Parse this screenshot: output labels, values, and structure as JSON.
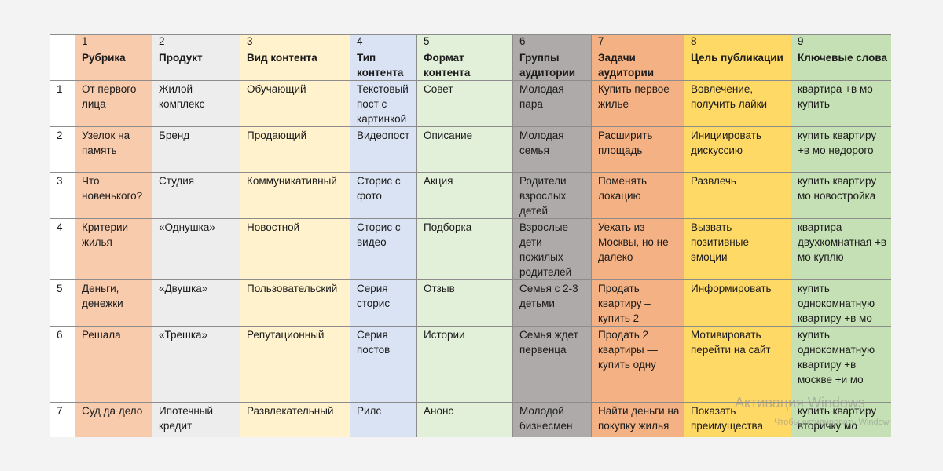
{
  "columns": [
    "1",
    "2",
    "3",
    "4",
    "5",
    "6",
    "7",
    "8",
    "9"
  ],
  "headers": [
    "Рубрика",
    "Продукт",
    "Вид контента",
    "Тип контента",
    "Формат контента",
    "Группы аудитории",
    "Задачи аудитории",
    "Цель публикации",
    "Ключевые слова"
  ],
  "rows": [
    {
      "num": "1",
      "cells": [
        "От первого лица",
        "Жилой комплекс",
        "Обучающий",
        "Текстовый пост с картинкой",
        "Совет",
        "Молодая пара",
        "Купить первое жилье",
        "Вовлечение, получить лайки",
        "квартира +в мо купить"
      ]
    },
    {
      "num": "2",
      "cells": [
        "Узелок на память",
        "Бренд",
        "Продающий",
        "Видеопост",
        "Описание",
        "Молодая семья",
        "Расширить площадь",
        "Инициировать дискуссию",
        "купить квартиру +в мо недорого"
      ]
    },
    {
      "num": "3",
      "cells": [
        "Что новенького?",
        "Студия",
        "Коммуникативный",
        "Сторис с фото",
        "Акция",
        "Родители взрослых детей",
        "Поменять локацию",
        "Развлечь",
        "купить квартиру мо новостройка"
      ]
    },
    {
      "num": "4",
      "cells": [
        "Критерии жилья",
        "«Однушка»",
        "Новостной",
        "Сторис с видео",
        "Подборка",
        "Взрослые дети пожилых родителей",
        "Уехать из Москвы, но не далеко",
        "Вызвать позитивные эмоции",
        "квартира двухкомнатная +в мо куплю"
      ]
    },
    {
      "num": "5",
      "cells": [
        "Деньги, денежки",
        "«Двушка»",
        "Пользовательский",
        "Серия сторис",
        "Отзыв",
        "Семья с 2-3 детьми",
        "Продать квартиру – купить 2",
        "Информировать",
        "купить однокомнатную квартиру +в мо"
      ]
    },
    {
      "num": "6",
      "cells": [
        "Решала",
        "«Трешка»",
        "Репутационный",
        "Серия постов",
        "Истории",
        "Семья ждет первенца",
        "Продать 2 квартиры — купить одну",
        "Мотивировать перейти на сайт",
        "купить однокомнатную квартиру +в москве +и мо"
      ]
    },
    {
      "num": "7",
      "cells": [
        "Суд да дело",
        "Ипотечный кредит",
        "Развлекательный",
        "Рилс",
        "Анонс",
        "Молодой бизнесмен",
        "Найти деньги на покупку жилья",
        "Показать преимущества продукта",
        "купить квартиру вторичку мо"
      ]
    }
  ],
  "watermark": {
    "title": "Активация Windows",
    "subtitle": "Чтобы активировать Window"
  }
}
